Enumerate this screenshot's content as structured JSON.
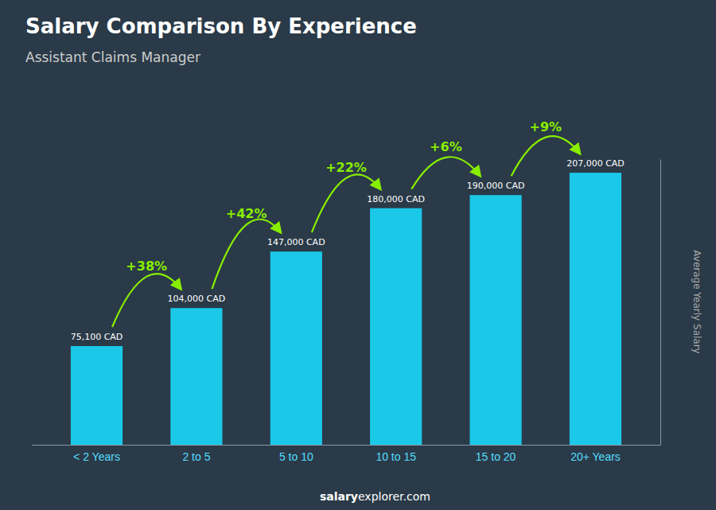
{
  "chart_data": {
    "type": "bar",
    "title": "Salary Comparison By Experience",
    "subtitle": "Assistant Claims Manager",
    "ylabel": "Average Yearly Salary",
    "categories": [
      "< 2 Years",
      "2 to 5",
      "5 to 10",
      "10 to 15",
      "15 to 20",
      "20+ Years"
    ],
    "values": [
      75100,
      104000,
      147000,
      180000,
      190000,
      207000
    ],
    "value_labels": [
      "75,100 CAD",
      "104,000 CAD",
      "147,000 CAD",
      "180,000 CAD",
      "190,000 CAD",
      "207,000 CAD"
    ],
    "data_labels": true,
    "color": "#1bc8e8",
    "ylim": [
      0,
      217350
    ],
    "yticks": [],
    "tick_labels": "x",
    "grid": false,
    "annotations": [
      "+38%",
      "+42%",
      "+22%",
      "+6%",
      "+9%"
    ],
    "footer": [
      "salary",
      "explorer.com"
    ]
  }
}
